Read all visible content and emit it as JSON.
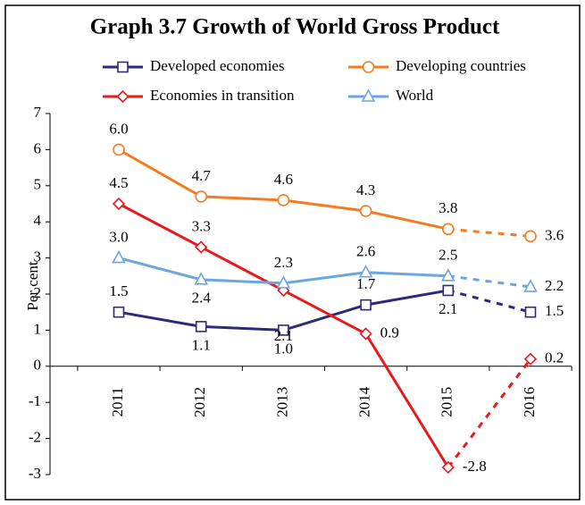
{
  "chart_data": {
    "type": "line",
    "title": "Graph  3.7   Growth of World Gross Product",
    "ylabel": "Per cent",
    "categories": [
      "2011",
      "2012",
      "2013",
      "2014",
      "2015",
      "2016"
    ],
    "dashed_from": "2015",
    "ylim": [
      -3,
      7
    ],
    "yticks": [
      -3,
      -2,
      -1,
      0,
      1,
      2,
      3,
      4,
      5,
      6,
      7
    ],
    "grid": false,
    "series": [
      {
        "name": "Developed economies",
        "color": "#2e2a7a",
        "marker": "square",
        "values": [
          1.5,
          1.1,
          1.0,
          1.7,
          2.1,
          1.5
        ],
        "value_labels": [
          "1.5",
          "1.1",
          "1.0",
          "1.7",
          "2.1",
          "1.5"
        ]
      },
      {
        "name": "Developing countries",
        "color": "#f47b20",
        "marker": "circle",
        "values": [
          6.0,
          4.7,
          4.6,
          4.3,
          3.8,
          3.6
        ],
        "value_labels": [
          "6.0",
          "4.7",
          "4.6",
          "4.3",
          "3.8",
          "3.6"
        ]
      },
      {
        "name": "Economies in transition",
        "color": "#e8191f",
        "marker": "diamond",
        "values": [
          4.5,
          3.3,
          2.1,
          0.9,
          -2.8,
          0.2
        ],
        "value_labels": [
          "4.5",
          "3.3",
          "2.1",
          "0.9",
          "-2.8",
          "0.2"
        ]
      },
      {
        "name": "World",
        "color": "#6aa6e0",
        "marker": "triangle",
        "values": [
          3.0,
          2.4,
          2.3,
          2.6,
          2.5,
          2.2
        ],
        "value_labels": [
          "3.0",
          "2.4",
          "2.3",
          "2.6",
          "2.5",
          "2.2"
        ]
      }
    ]
  }
}
